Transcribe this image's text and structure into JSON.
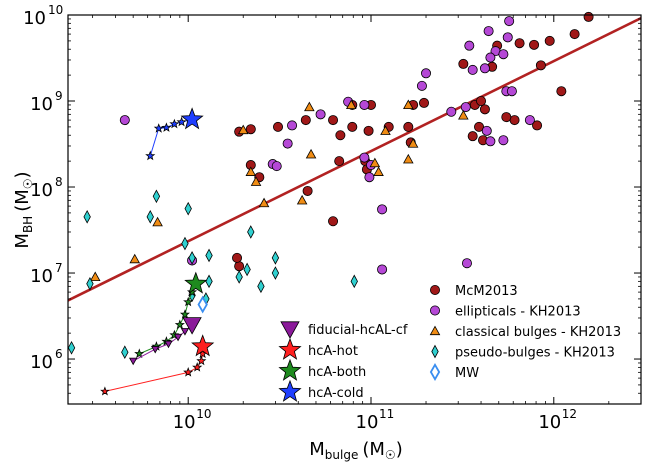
{
  "chart_data": {
    "type": "scatter",
    "xlabel_main": "M",
    "xlabel_sub": "bulge",
    "xlabel_unit": "(M",
    "xlabel_unit_close": ")",
    "ylabel_main": "M",
    "ylabel_sub": "BH",
    "ylabel_unit": "(M",
    "ylabel_unit_close": ")",
    "xscale": "log",
    "yscale": "log",
    "xlim": [
      2200000000.0,
      3000000000000.0
    ],
    "ylim": [
      300000.0,
      10000000000.0
    ],
    "xticks": [
      {
        "value": 10000000000.0,
        "base": "10",
        "exp": "10"
      },
      {
        "value": 100000000000.0,
        "base": "10",
        "exp": "11"
      },
      {
        "value": 1000000000000.0,
        "base": "10",
        "exp": "12"
      }
    ],
    "yticks": [
      {
        "value": 1000000.0,
        "base": "10",
        "exp": "6"
      },
      {
        "value": 10000000.0,
        "base": "10",
        "exp": "7"
      },
      {
        "value": 100000000.0,
        "base": "10",
        "exp": "8"
      },
      {
        "value": 1000000000.0,
        "base": "10",
        "exp": "9"
      },
      {
        "value": 10000000000.0,
        "base": "10",
        "exp": "10"
      }
    ],
    "fit_line": {
      "color": "#b22222",
      "points": [
        [
          2200000000.0,
          4800000.0
        ],
        [
          3000000000000.0,
          9200000000.0
        ]
      ]
    },
    "legend_left": [
      {
        "label": "fiducial-hcAL-cf",
        "marker": "triangle-down",
        "color": "#8b1a9a"
      },
      {
        "label": "hcA-hot",
        "marker": "star",
        "color": "#ff2020"
      },
      {
        "label": "hcA-both",
        "marker": "star",
        "color": "#1e8a1e"
      },
      {
        "label": "hcA-cold",
        "marker": "star",
        "color": "#1f3fff"
      }
    ],
    "legend_right": [
      {
        "label": "McM2013",
        "marker": "circle",
        "color": "#a01818"
      },
      {
        "label": "ellipticals - KH2013",
        "marker": "circle",
        "color": "#b548d6"
      },
      {
        "label": "classical bulges - KH2013",
        "marker": "triangle-up",
        "color": "#f08c14"
      },
      {
        "label": "pseudo-bulges - KH2013",
        "marker": "diamond",
        "color": "#30d0d0"
      },
      {
        "label": "MW",
        "marker": "diamond-open",
        "color": "#3a8ef0"
      }
    ],
    "series": [
      {
        "name": "McM2013",
        "marker": "circle",
        "color": "#a01818",
        "points": [
          [
            1550000000000.0,
            9500000000.0
          ],
          [
            1300000000000.0,
            6000000000.0
          ],
          [
            950000000000.0,
            5000000000.0
          ],
          [
            780000000000.0,
            4500000000.0
          ],
          [
            650000000000.0,
            4700000000.0
          ],
          [
            490000000000.0,
            4400000000.0
          ],
          [
            460000000000.0,
            2500000000.0
          ],
          [
            850000000000.0,
            2600000000.0
          ],
          [
            320000000000.0,
            2700000000.0
          ],
          [
            1100000000000.0,
            1300000000.0
          ],
          [
            370000000000.0,
            900000000.0
          ],
          [
            420000000000.0,
            800000000.0
          ],
          [
            610000000000.0,
            600000000.0
          ],
          [
            390000000000.0,
            500000000.0
          ],
          [
            360000000000.0,
            390000000.0
          ],
          [
            410000000000.0,
            350000000.0
          ],
          [
            810000000000.0,
            520000000.0
          ],
          [
            550000000000.0,
            650000000.0
          ],
          [
            400000000000.0,
            1000000000.0
          ],
          [
            195000000000.0,
            950000000.0
          ],
          [
            170000000000.0,
            900000000.0
          ],
          [
            160000000000.0,
            500000000.0
          ],
          [
            165000000000.0,
            330000000.0
          ],
          [
            100000000000.0,
            900000000.0
          ],
          [
            97000000000.0,
            450000000.0
          ],
          [
            93000000000.0,
            200000000.0
          ],
          [
            95000000000.0,
            160000000.0
          ],
          [
            79000000000.0,
            900000000.0
          ],
          [
            62000000000.0,
            600000000.0
          ],
          [
            44000000000.0,
            600000000.0
          ],
          [
            79000000000.0,
            500000000.0
          ],
          [
            125000000000.0,
            500000000.0
          ],
          [
            68000000000.0,
            400000000.0
          ],
          [
            31000000000.0,
            500000000.0
          ],
          [
            22000000000.0,
            470000000.0
          ],
          [
            19000000000.0,
            440000000.0
          ],
          [
            22000000000.0,
            180000000.0
          ],
          [
            24500000000.0,
            130000000.0
          ],
          [
            67000000000.0,
            200000000.0
          ],
          [
            45000000000.0,
            90000000.0
          ],
          [
            62000000000.0,
            40000000.0
          ],
          [
            19000000000.0,
            12000000.0
          ],
          [
            18500000000.0,
            15000000.0
          ]
        ]
      },
      {
        "name": "ellipticals - KH2013",
        "marker": "circle",
        "color": "#b548d6",
        "points": [
          [
            570000000000.0,
            8500000000.0
          ],
          [
            440000000000.0,
            6500000000.0
          ],
          [
            560000000000.0,
            5500000000.0
          ],
          [
            480000000000.0,
            3800000000.0
          ],
          [
            450000000000.0,
            3200000000.0
          ],
          [
            530000000000.0,
            3500000000.0
          ],
          [
            420000000000.0,
            2400000000.0
          ],
          [
            360000000000.0,
            2300000000.0
          ],
          [
            345000000000.0,
            4400000000.0
          ],
          [
            200000000000.0,
            2100000000.0
          ],
          [
            190000000000.0,
            1500000000.0
          ],
          [
            550000000000.0,
            1300000000.0
          ],
          [
            590000000000.0,
            1300000000.0
          ],
          [
            330000000000.0,
            850000000.0
          ],
          [
            275000000000.0,
            750000000.0
          ],
          [
            740000000000.0,
            600000000.0
          ],
          [
            430000000000.0,
            450000000.0
          ],
          [
            530000000000.0,
            350000000.0
          ],
          [
            450000000000.0,
            340000000.0
          ],
          [
            75000000000.0,
            980000000.0
          ],
          [
            92000000000.0,
            900000000.0
          ],
          [
            53000000000.0,
            700000000.0
          ],
          [
            37000000000.0,
            520000000.0
          ],
          [
            35000000000.0,
            320000000.0
          ],
          [
            29000000000.0,
            185000000.0
          ],
          [
            30500000000.0,
            175000000.0
          ],
          [
            92000000000.0,
            220000000.0
          ],
          [
            98000000000.0,
            130000000.0
          ],
          [
            100000000000.0,
            180000000.0
          ],
          [
            115000000000.0,
            55000000.0
          ],
          [
            4500000000.0,
            600000000.0
          ],
          [
            10500000000.0,
            14000000.0
          ],
          [
            115000000000.0,
            11000000.0
          ],
          [
            335000000000.0,
            13000000.0
          ]
        ]
      },
      {
        "name": "classical bulges - KH2013",
        "marker": "triangle-up",
        "color": "#f08c14",
        "points": [
          [
            46000000000.0,
            850000000.0
          ],
          [
            78000000000.0,
            900000000.0
          ],
          [
            120000000000.0,
            450000000.0
          ],
          [
            105000000000.0,
            190000000.0
          ],
          [
            110000000000.0,
            150000000.0
          ],
          [
            160000000000.0,
            900000000.0
          ],
          [
            170000000000.0,
            320000000.0
          ],
          [
            160000000000.0,
            210000000.0
          ],
          [
            320000000000.0,
            680000000.0
          ],
          [
            20000000000.0,
            460000000.0
          ],
          [
            22000000000.0,
            150000000.0
          ],
          [
            23500000000.0,
            115000000.0
          ],
          [
            26000000000.0,
            65000000.0
          ],
          [
            42000000000.0,
            70000000.0
          ],
          [
            47000000000.0,
            240000000.0
          ],
          [
            6800000000.0,
            39000000.0
          ],
          [
            5100000000.0,
            14500000.0
          ],
          [
            3100000000.0,
            9000000.0
          ]
        ]
      },
      {
        "name": "pseudo-bulges - KH2013",
        "marker": "diamond",
        "color": "#30d0d0",
        "points": [
          [
            2300000000.0,
            1350000.0
          ],
          [
            2900000000.0,
            7500000.0
          ],
          [
            2800000000.0,
            45000000.0
          ],
          [
            6200000000.0,
            45000000.0
          ],
          [
            6700000000.0,
            78000000.0
          ],
          [
            10000000000.0,
            56000000.0
          ],
          [
            9600000000.0,
            22000000.0
          ],
          [
            10500000000.0,
            15000000.0
          ],
          [
            13000000000.0,
            16000000.0
          ],
          [
            13000000000.0,
            8000000.0
          ],
          [
            12500000000.0,
            5000000.0
          ],
          [
            10500000000.0,
            5500000.0
          ],
          [
            19000000000.0,
            9000000.0
          ],
          [
            21000000000.0,
            11000000.0
          ],
          [
            22000000000.0,
            30000000.0
          ],
          [
            30000000000.0,
            15000000.0
          ],
          [
            30000000000.0,
            10000000.0
          ],
          [
            25000000000.0,
            7000000.0
          ],
          [
            81000000000.0,
            8000000.0
          ],
          [
            4500000000.0,
            1200000.0
          ]
        ]
      },
      {
        "name": "MW",
        "marker": "diamond-open",
        "color": "#3a8ef0",
        "points": [
          [
            12000000000.0,
            4300000.0
          ]
        ]
      }
    ],
    "sim_tracks": [
      {
        "name": "hcA-cold",
        "color": "#1f3fff",
        "points": [
          [
            6200000000.0,
            230000000.0
          ],
          [
            6900000000.0,
            480000000.0
          ],
          [
            7600000000.0,
            490000000.0
          ],
          [
            8400000000.0,
            540000000.0
          ],
          [
            9200000000.0,
            570000000.0
          ],
          [
            10500000000.0,
            610000000.0
          ]
        ]
      },
      {
        "name": "hcA-both",
        "color": "#1e8a1e",
        "points": [
          [
            5400000000.0,
            1150000.0
          ],
          [
            6700000000.0,
            1400000.0
          ],
          [
            7600000000.0,
            1600000.0
          ],
          [
            8400000000.0,
            1900000.0
          ],
          [
            9000000000.0,
            2500000.0
          ],
          [
            9600000000.0,
            3300000.0
          ],
          [
            10000000000.0,
            4600000.0
          ],
          [
            10500000000.0,
            6000000.0
          ],
          [
            11000000000.0,
            7500000.0
          ]
        ]
      },
      {
        "name": "fiducial-hcAL-cf",
        "color": "#8b1a9a",
        "points": [
          [
            5000000000.0,
            950000.0
          ],
          [
            6600000000.0,
            1300000.0
          ],
          [
            7800000000.0,
            1500000.0
          ],
          [
            8800000000.0,
            1800000.0
          ],
          [
            9600000000.0,
            2100000.0
          ],
          [
            10500000000.0,
            2500000.0
          ]
        ]
      },
      {
        "name": "hcA-hot",
        "color": "#ff2020",
        "points": [
          [
            3500000000.0,
            420000.0
          ],
          [
            10000000000.0,
            700000.0
          ],
          [
            11200000000.0,
            800000.0
          ],
          [
            11800000000.0,
            950000.0
          ],
          [
            12000000000.0,
            1150000.0
          ],
          [
            12000000000.0,
            1400000.0
          ]
        ]
      }
    ]
  }
}
